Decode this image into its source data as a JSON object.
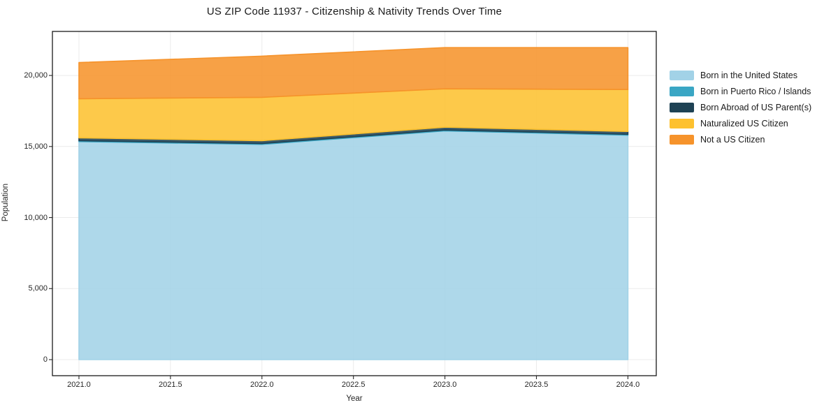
{
  "title": "US ZIP Code 11937 - Citizenship & Nativity Trends Over Time",
  "axes": {
    "x_label": "Year",
    "y_label": "Population",
    "x_tick_labels": [
      "2021.0",
      "2021.5",
      "2022.0",
      "2022.5",
      "2023.0",
      "2023.5",
      "2024.0"
    ],
    "y_tick_labels": [
      "0",
      "5,000",
      "10,000",
      "15,000",
      "20,000"
    ]
  },
  "chart_data": {
    "type": "area",
    "stacked": true,
    "title": "US ZIP Code 11937 - Citizenship & Nativity Trends Over Time",
    "xlabel": "Year",
    "ylabel": "Population",
    "x": [
      2021,
      2022,
      2023,
      2024
    ],
    "series": [
      {
        "name": "Born in the United States",
        "color": "#a2d2e7",
        "values": [
          15350,
          15150,
          16100,
          15800
        ]
      },
      {
        "name": "Born in Puerto Rico / Islands",
        "color": "#3aa6c4",
        "values": [
          60,
          60,
          60,
          60
        ]
      },
      {
        "name": "Born Abroad of US Parent(s)",
        "color": "#1e4254",
        "values": [
          200,
          200,
          200,
          200
        ]
      },
      {
        "name": "Naturalized US Citizen",
        "color": "#fdc12f",
        "values": [
          2750,
          3050,
          2700,
          2950
        ]
      },
      {
        "name": "Not a US Citizen",
        "color": "#f6932b",
        "values": [
          2550,
          2900,
          2900,
          2950
        ]
      }
    ],
    "stacked_totals": [
      20910,
      21360,
      21960,
      21960
    ],
    "x_ticks": [
      2021.0,
      2021.5,
      2022.0,
      2022.5,
      2023.0,
      2023.5,
      2024.0
    ],
    "y_ticks": [
      0,
      5000,
      10000,
      15000,
      20000
    ],
    "xlim": [
      2020.855,
      2024.155
    ],
    "ylim": [
      -1130,
      23100
    ],
    "grid": true,
    "legend_position": "right-outside"
  },
  "colors": {
    "grid": "#ebebeb",
    "frame": "#1a1a1a",
    "background": "#ffffff",
    "tick_text": "#262626",
    "fill_opacity": 0.87
  }
}
